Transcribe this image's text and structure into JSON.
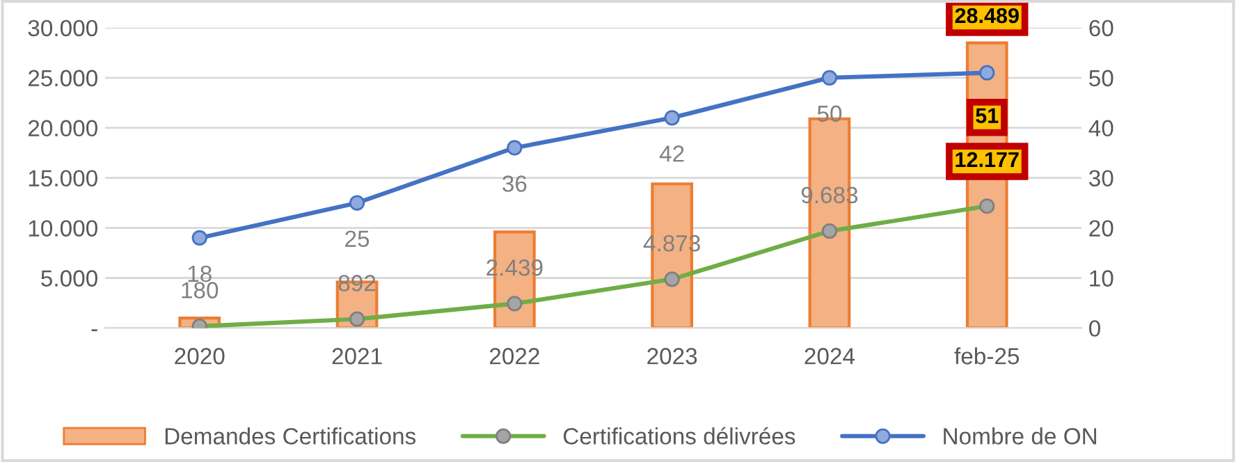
{
  "chart_data": {
    "type": "bar",
    "categories": [
      "2020",
      "2021",
      "2022",
      "2023",
      "2024",
      "feb-25"
    ],
    "series": [
      {
        "name": "Demandes Certifications",
        "color": "#f4b183",
        "values": [
          1000,
          4600,
          9600,
          14400,
          20900,
          28489
        ],
        "value_labels": [
          null,
          null,
          null,
          null,
          null,
          "28.489"
        ]
      },
      {
        "name": "Certifications délivrées",
        "type": "line",
        "color": "#70ad47",
        "values": [
          180,
          892,
          2439,
          4873,
          9683,
          12177
        ],
        "value_labels": [
          "180",
          "892",
          "2.439",
          "4.873",
          "9.683",
          "12.177"
        ]
      },
      {
        "name": "Nombre de ON",
        "type": "line",
        "axis": "y2",
        "color": "#4472c4",
        "values": [
          18,
          25,
          36,
          42,
          50,
          51
        ],
        "value_labels": [
          "18",
          "25",
          "36",
          "42",
          "50",
          "51"
        ]
      }
    ],
    "ylim": [
      0,
      30000
    ],
    "yticks": [
      {
        "value": 0,
        "label": "-"
      },
      {
        "value": 5000,
        "label": "5.000"
      },
      {
        "value": 10000,
        "label": "10.000"
      },
      {
        "value": 15000,
        "label": "15.000"
      },
      {
        "value": 20000,
        "label": "20.000"
      },
      {
        "value": 25000,
        "label": "25.000"
      },
      {
        "value": 30000,
        "label": "30.000"
      }
    ],
    "y2lim": [
      0,
      60
    ],
    "y2ticks": [
      0,
      10,
      20,
      30,
      40,
      50,
      60
    ],
    "grid": "y",
    "legend": "bottom",
    "marker": "circle",
    "line_style": "solid"
  }
}
